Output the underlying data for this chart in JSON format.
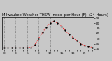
{
  "title": "Milwaukee Weather THSW Index  per Hour (F)  (24 Hours)",
  "hours": [
    0,
    1,
    2,
    3,
    4,
    5,
    6,
    7,
    8,
    9,
    10,
    11,
    12,
    13,
    14,
    15,
    16,
    17,
    18,
    19,
    20,
    21,
    22,
    23
  ],
  "values": [
    32,
    32,
    32,
    32,
    32,
    32,
    32,
    33,
    38,
    50,
    62,
    72,
    80,
    84,
    80,
    74,
    66,
    58,
    52,
    46,
    40,
    37,
    35,
    33
  ],
  "line_color": "#ff0000",
  "marker_color": "#000000",
  "bg_color": "#c8c8c8",
  "plot_bg_color": "#c8c8c8",
  "outer_bg_color": "#c8c8c8",
  "grid_color": "#606060",
  "title_color": "#000000",
  "ylim": [
    28,
    92
  ],
  "yticks": [
    30,
    40,
    50,
    60,
    70,
    80,
    90
  ],
  "ytick_labels": [
    "30",
    "40",
    "50",
    "60",
    "70",
    "80",
    "90"
  ],
  "title_fontsize": 3.8,
  "tick_fontsize": 3.2,
  "figsize": [
    1.6,
    0.87
  ],
  "dpi": 100
}
